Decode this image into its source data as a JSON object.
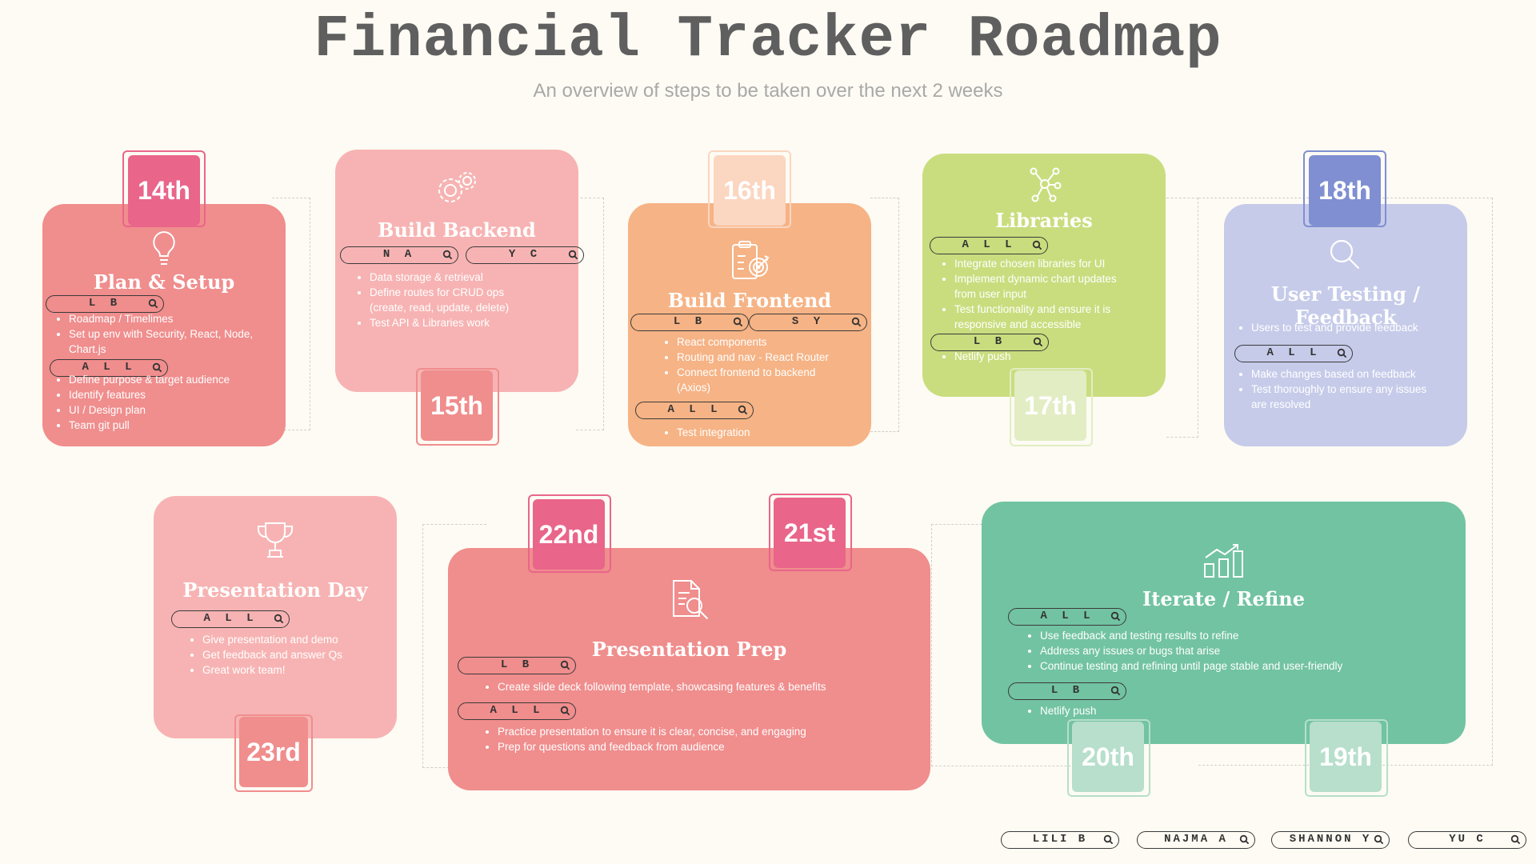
{
  "title": "Financial Tracker Roadmap",
  "subtitle": "An overview of steps to be taken over the next 2 weeks",
  "colors": {
    "background": "#fdfbf3",
    "coral": "#f08d8d",
    "pink": "#f7b3b3",
    "orange": "#f6b385",
    "lime": "#c9dd7e",
    "lavender": "#c6cbe9",
    "green": "#72c3a2"
  },
  "cards": {
    "plan": {
      "icon": "lightbulb-icon",
      "title": "Plan & Setup",
      "date": "14th",
      "group1_pill": "L B",
      "group1_items": [
        "Roadmap / Timelimes",
        "Set up env with Security,  React, Node,",
        "Chart.js"
      ],
      "group2_pill": "A L L",
      "group2_items": [
        "Define purpose & target audience",
        "Identify features",
        "UI / Design plan",
        "Team git pull"
      ]
    },
    "backend": {
      "icon": "gears-icon",
      "title": "Build Backend",
      "date": "15th",
      "pill1": "N A",
      "pill2": "Y C",
      "items": [
        "Data storage & retrieval",
        "Define routes for CRUD ops",
        "(create, read, update, delete)",
        "Test API & Libraries work"
      ]
    },
    "frontend": {
      "icon": "clipboard-target-icon",
      "title": "Build Frontend",
      "date": "16th",
      "pill1": "L B",
      "pill2": "S Y",
      "items": [
        "React components",
        "Routing and nav - React Router",
        "Connect frontend to backend",
        "(Axios)"
      ],
      "pill3": "A L L",
      "items2": [
        "Test integration"
      ]
    },
    "libraries": {
      "icon": "network-nodes-icon",
      "title": "Libraries",
      "date": "17th",
      "pill1": "A L L",
      "items": [
        "Integrate chosen libraries for UI",
        "Implement dynamic chart updates",
        "from user input",
        "Test functionality and ensure it is",
        "responsive and accessible"
      ],
      "pill2": "L B",
      "items2": [
        "Netlify push"
      ]
    },
    "testing": {
      "icon": "magnifier-icon",
      "title": "User Testing / Feedback",
      "date": "18th",
      "items": [
        "Users to test and provide feedback"
      ],
      "pill1": "A L L",
      "items2": [
        "Make changes based on feedback",
        "Test thoroughly to ensure any issues",
        "are resolved"
      ]
    },
    "iterate": {
      "icon": "bar-chart-trend-icon",
      "title": "Iterate / Refine",
      "date_left": "20th",
      "date_right": "19th",
      "pill1": "A L L",
      "items": [
        "Use feedback and testing results to refine",
        "Address any issues or bugs that arise",
        "Continue testing and refining until page stable and user-friendly"
      ],
      "pill2": "L B",
      "items2": [
        "Netlify push"
      ]
    },
    "prep": {
      "icon": "document-search-icon",
      "title": "Presentation Prep",
      "date_left": "22nd",
      "date_right": "21st",
      "pill1": "L B",
      "items": [
        "Create slide deck following template, showcasing features & benefits"
      ],
      "pill2": "A L L",
      "items2": [
        "Practice presentation to ensure it is clear, concise, and engaging",
        "Prep for questions and feedback from audience"
      ]
    },
    "presentation": {
      "icon": "trophy-icon",
      "title": "Presentation Day",
      "date": "23rd",
      "pill1": "A L L",
      "items": [
        "Give presentation and demo",
        "Get feedback and answer Qs",
        "Great work team!"
      ]
    }
  },
  "legend": [
    "LILI B",
    "NAJMA A",
    "SHANNON Y",
    "YU C"
  ]
}
